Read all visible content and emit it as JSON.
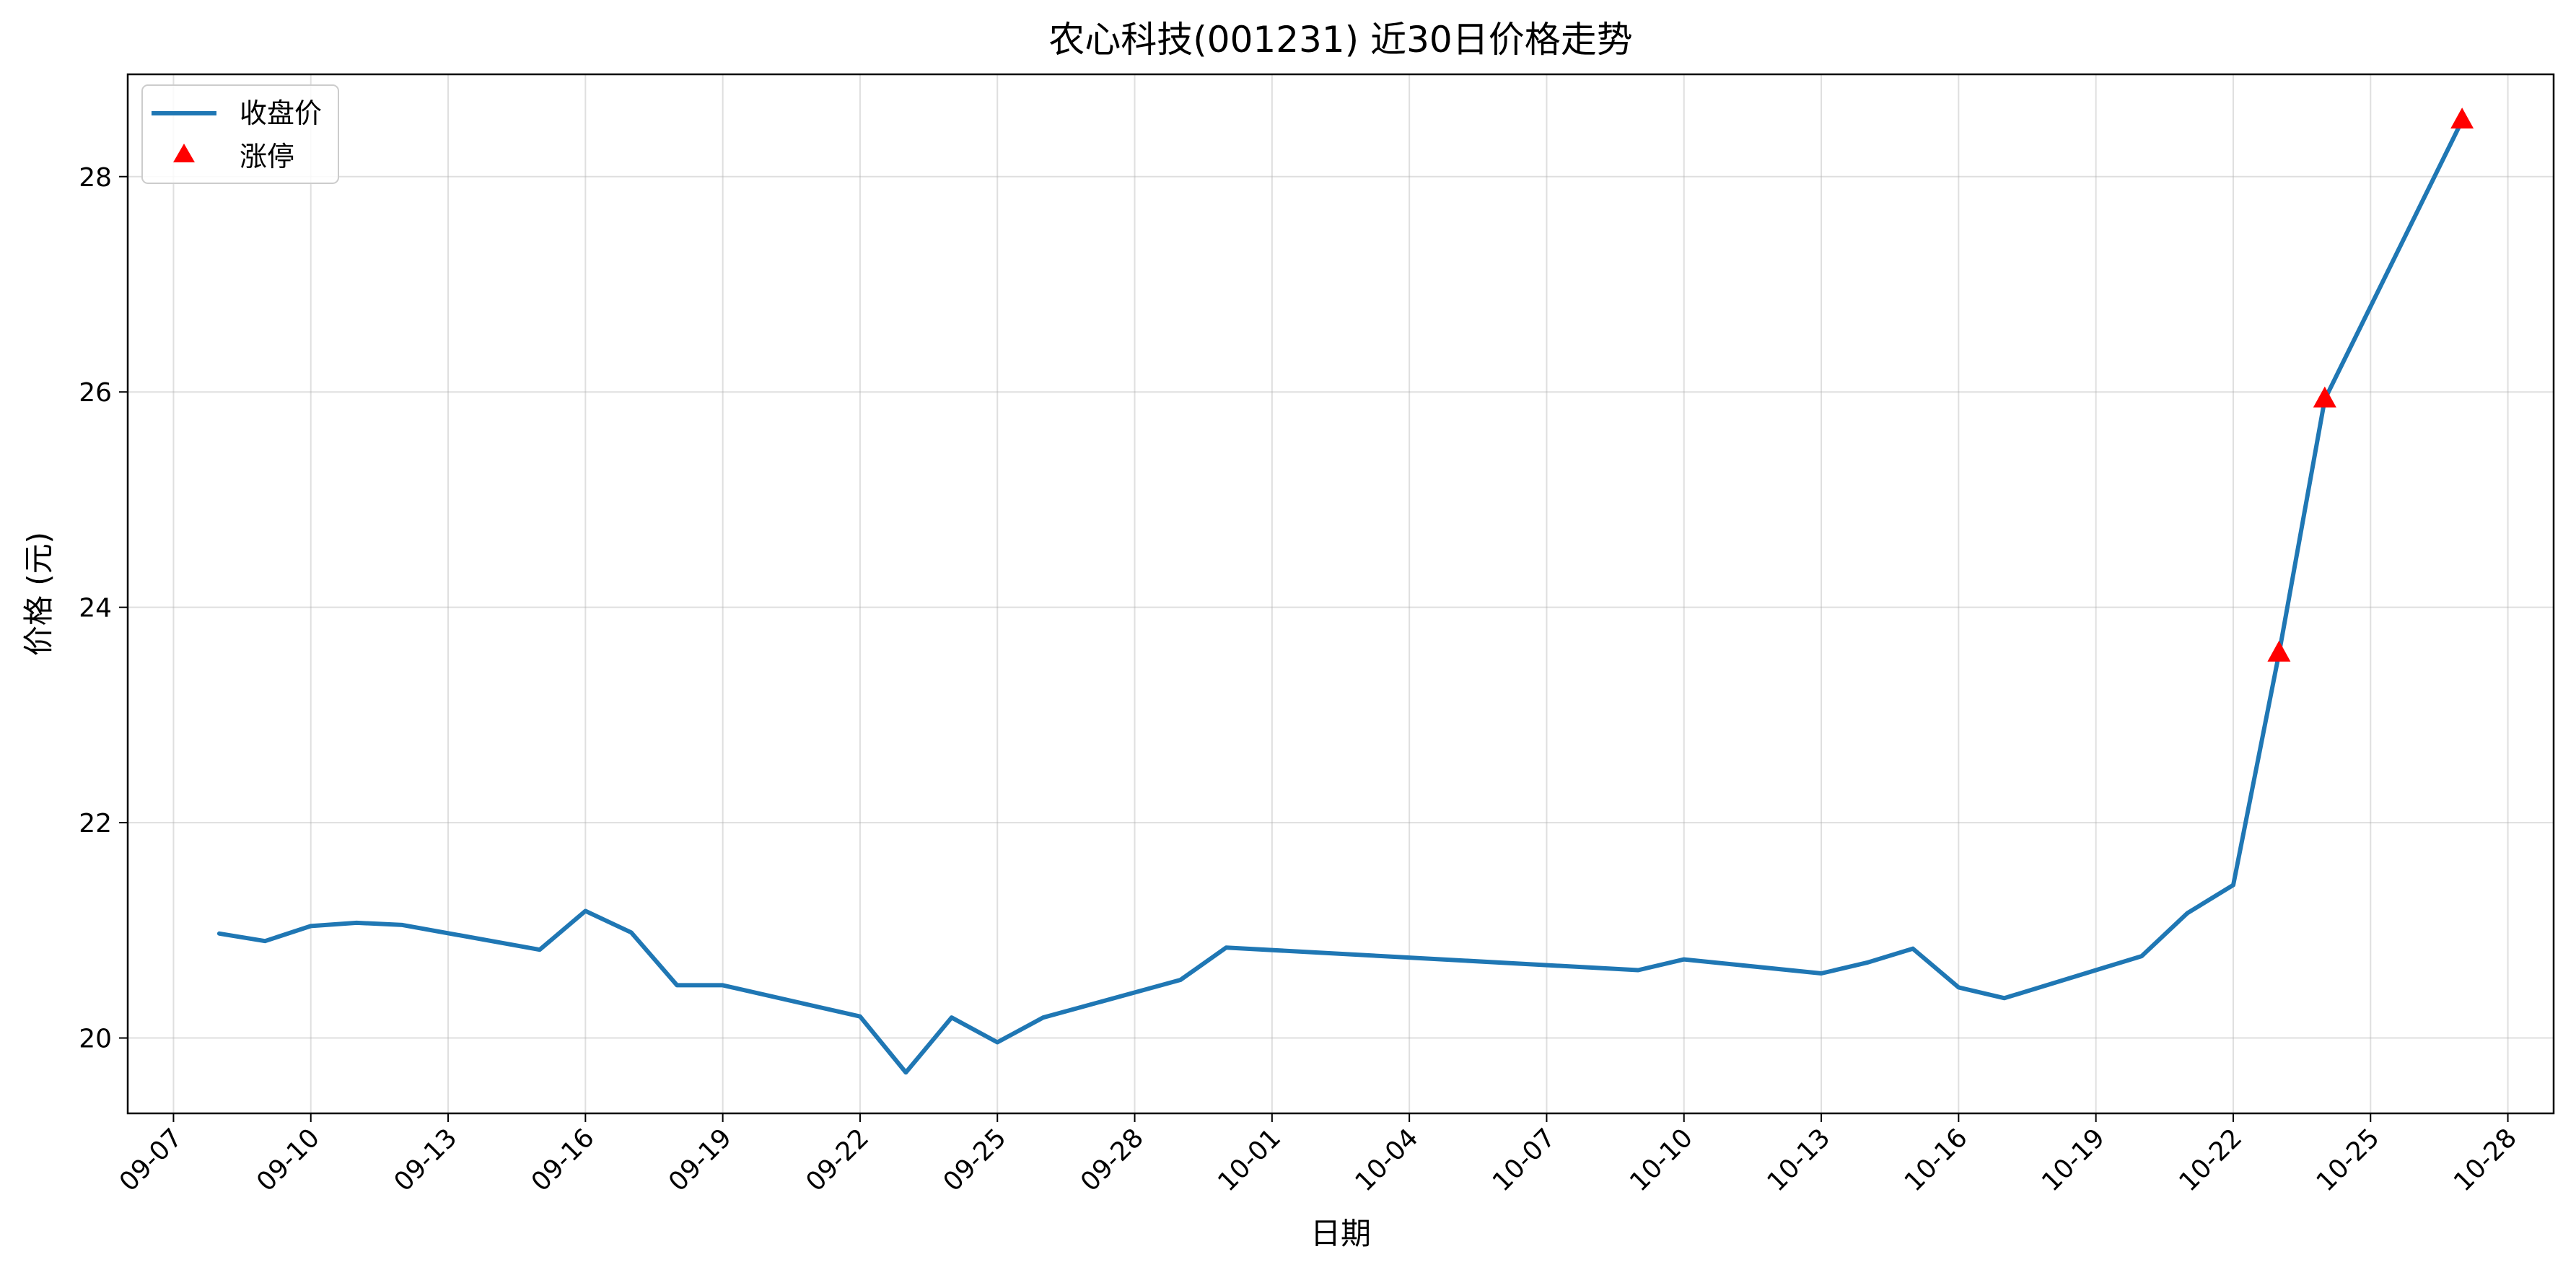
{
  "chart_data": {
    "type": "line",
    "title": "农心科技(001231) 近30日价格走势",
    "xlabel": "日期",
    "ylabel": "价格 (元)",
    "xlim": [
      "2025-09-06",
      "2025-10-29"
    ],
    "ylim": [
      19.3,
      28.95
    ],
    "grid": true,
    "legend_position": "top-left",
    "x_ticks": [
      "09-07",
      "09-10",
      "09-13",
      "09-16",
      "09-19",
      "09-22",
      "09-25",
      "09-28",
      "10-01",
      "10-04",
      "10-07",
      "10-10",
      "10-13",
      "10-16",
      "10-19",
      "10-22",
      "10-25",
      "10-28"
    ],
    "y_ticks": [
      20,
      22,
      24,
      26,
      28
    ],
    "series": [
      {
        "name": "收盘价",
        "kind": "line",
        "color": "#1f77b4",
        "points": [
          {
            "x": "2025-09-08",
            "y": 20.97
          },
          {
            "x": "2025-09-09",
            "y": 20.9
          },
          {
            "x": "2025-09-10",
            "y": 21.04
          },
          {
            "x": "2025-09-11",
            "y": 21.07
          },
          {
            "x": "2025-09-12",
            "y": 21.05
          },
          {
            "x": "2025-09-15",
            "y": 20.82
          },
          {
            "x": "2025-09-16",
            "y": 21.18
          },
          {
            "x": "2025-09-17",
            "y": 20.98
          },
          {
            "x": "2025-09-18",
            "y": 20.49
          },
          {
            "x": "2025-09-19",
            "y": 20.49
          },
          {
            "x": "2025-09-22",
            "y": 20.2
          },
          {
            "x": "2025-09-23",
            "y": 19.68
          },
          {
            "x": "2025-09-24",
            "y": 20.19
          },
          {
            "x": "2025-09-25",
            "y": 19.96
          },
          {
            "x": "2025-09-26",
            "y": 20.19
          },
          {
            "x": "2025-09-29",
            "y": 20.54
          },
          {
            "x": "2025-09-30",
            "y": 20.84
          },
          {
            "x": "2025-10-09",
            "y": 20.63
          },
          {
            "x": "2025-10-10",
            "y": 20.73
          },
          {
            "x": "2025-10-13",
            "y": 20.6
          },
          {
            "x": "2025-10-14",
            "y": 20.7
          },
          {
            "x": "2025-10-15",
            "y": 20.83
          },
          {
            "x": "2025-10-16",
            "y": 20.47
          },
          {
            "x": "2025-10-17",
            "y": 20.37
          },
          {
            "x": "2025-10-20",
            "y": 20.76
          },
          {
            "x": "2025-10-21",
            "y": 21.16
          },
          {
            "x": "2025-10-22",
            "y": 21.42
          },
          {
            "x": "2025-10-23",
            "y": 23.57
          },
          {
            "x": "2025-10-24",
            "y": 25.93
          },
          {
            "x": "2025-10-27",
            "y": 28.52
          }
        ]
      },
      {
        "name": "涨停",
        "kind": "marker",
        "marker": "triangle",
        "color": "#ff0000",
        "points": [
          {
            "x": "2025-10-23",
            "y": 23.57
          },
          {
            "x": "2025-10-24",
            "y": 25.93
          },
          {
            "x": "2025-10-27",
            "y": 28.52
          }
        ]
      }
    ]
  }
}
